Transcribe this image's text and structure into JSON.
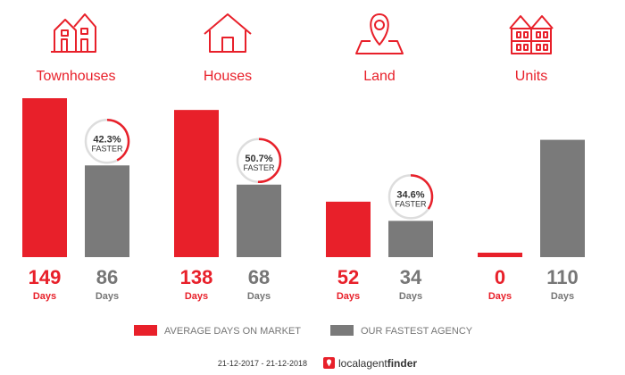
{
  "colors": {
    "market": "#e8202a",
    "agency": "#7a7a7a",
    "ring_track": "#dddddd",
    "text_dark": "#333333"
  },
  "chart_data": {
    "type": "bar",
    "categories": [
      "Townhouses",
      "Houses",
      "Land",
      "Units"
    ],
    "icons": [
      "townhouse-icon",
      "house-icon",
      "map-pin-icon",
      "units-icon"
    ],
    "series": [
      {
        "name": "AVERAGE DAYS ON MARKET",
        "values": [
          149,
          138,
          52,
          0
        ]
      },
      {
        "name": "OUR FASTEST AGENCY",
        "values": [
          86,
          68,
          34,
          110
        ]
      }
    ],
    "value_unit": "Days",
    "ylim": [
      0,
      149
    ],
    "faster": [
      {
        "category": "Townhouses",
        "percent": 42.3,
        "label": "42.3%",
        "text": "FASTER"
      },
      {
        "category": "Houses",
        "percent": 50.7,
        "label": "50.7%",
        "text": "FASTER"
      },
      {
        "category": "Land",
        "percent": 34.6,
        "label": "34.6%",
        "text": "FASTER"
      }
    ],
    "legend_position": "bottom-center",
    "grid": false
  },
  "footer": {
    "date_range": "21-12-2017 - 21-12-2018",
    "brand_part1": "localagent",
    "brand_part2": "finder"
  }
}
